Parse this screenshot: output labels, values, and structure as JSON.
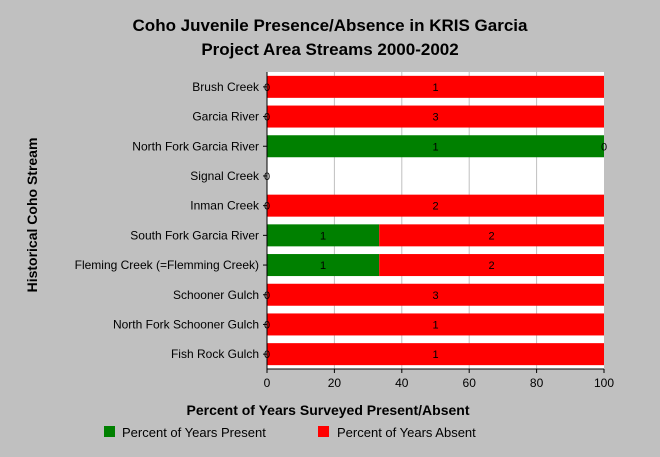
{
  "chart_data": {
    "type": "bar",
    "orientation": "horizontal",
    "stacked": true,
    "title": [
      "Coho Juvenile Presence/Absence in KRIS Garcia",
      "Project Area Streams 2000-2002"
    ],
    "xlabel": "Percent of Years Surveyed Present/Absent",
    "ylabel": "Historical Coho Stream",
    "xlim": [
      0,
      100
    ],
    "xticks": [
      "0",
      "20",
      "40",
      "60",
      "80",
      "100"
    ],
    "grid": true,
    "legend_position": "bottom",
    "categories": [
      "Brush Creek",
      "Garcia River",
      "North Fork Garcia River",
      "Signal Creek",
      "Inman Creek",
      "South Fork Garcia River",
      "Fleming Creek (=Flemming Creek)",
      "Schooner Gulch",
      "North Fork Schooner Gulch",
      "Fish Rock Gulch"
    ],
    "series": [
      {
        "name": "Percent of Years Present",
        "color": "#008000",
        "values": [
          0,
          0,
          100,
          0,
          0,
          33.3,
          33.3,
          0,
          0,
          0
        ],
        "labels": [
          "0",
          "0",
          "1",
          "0",
          "0",
          "1",
          "1",
          "0",
          "0",
          "0"
        ]
      },
      {
        "name": "Percent of Years Absent",
        "color": "#ff0000",
        "values": [
          100,
          100,
          0,
          0,
          100,
          66.7,
          66.7,
          100,
          100,
          100
        ],
        "labels": [
          "1",
          "3",
          "0",
          "",
          "2",
          "2",
          "2",
          "3",
          "1",
          "1"
        ]
      }
    ]
  }
}
